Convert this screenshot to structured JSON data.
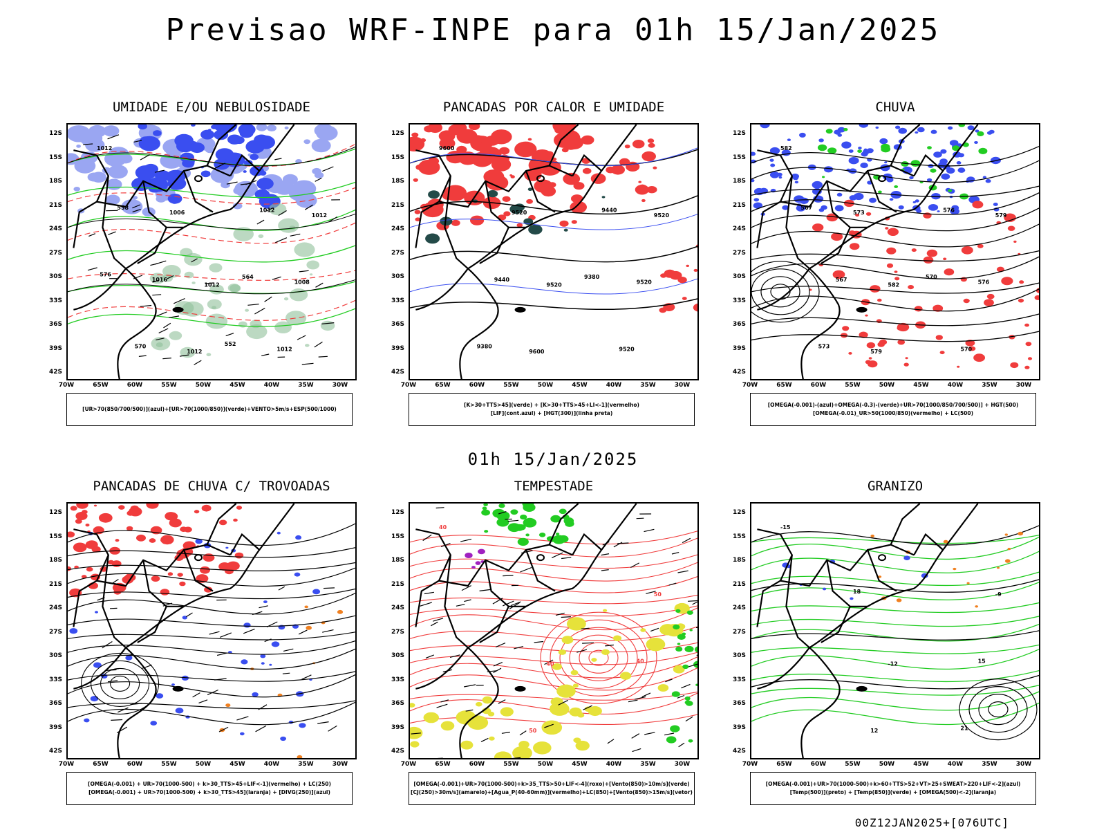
{
  "header": {
    "title": "Previsao WRF-INPE  para 01h 15/Jan/2025"
  },
  "middle_label": "01h 15/Jan/2025",
  "footer": {
    "run_stamp": "00Z12JAN2025+[076UTC]"
  },
  "axes": {
    "latitudes": [
      "12S",
      "15S",
      "18S",
      "21S",
      "24S",
      "27S",
      "30S",
      "33S",
      "36S",
      "39S",
      "42S"
    ],
    "longitudes": [
      "70W",
      "65W",
      "60W",
      "55W",
      "50W",
      "45W",
      "40W",
      "35W",
      "30W"
    ]
  },
  "colors": {
    "blue": "#3a4ef0",
    "lightblue": "#9aa6f2",
    "green": "#22cc22",
    "red": "#f03c3c",
    "yellow": "#e6e23a",
    "darkteal": "#234a48",
    "purple": "#a020c0",
    "orange": "#f08020"
  },
  "panels": [
    {
      "title": "UMIDADE E/OU NEBULOSIDADE",
      "legend": [
        "[UR>70(850/700/500)](azul)+[UR>70(1000/850)](verde)+VENTO>5m/s+ESP(500/1000)"
      ],
      "labels": [
        "1012",
        "1012",
        "1012",
        "1012",
        "1008",
        "1006",
        "1012",
        "1016",
        "1012",
        "570",
        "564",
        "558",
        "552",
        "576"
      ]
    },
    {
      "title": "PANCADAS POR CALOR E UMIDADE",
      "legend": [
        "[K>30+TTS>45](verde) + [K>30+TTS>45+LI<-1](vermelho)",
        "[LIF](cont.azul) + [HGT(300)](linha preta)"
      ],
      "labels": [
        "9600",
        "9520",
        "9520",
        "9600",
        "9520",
        "9520",
        "9520",
        "9440",
        "9440",
        "9380",
        "9380"
      ]
    },
    {
      "title": "CHUVA",
      "legend": [
        "[OMEGA(-0.001)-(azul)+OMEGA(-0.3)-(verde)+UR>70(1000/850/700/500)] + HGT(500)",
        "[OMEGA(-0.01)_UR>50(1000/850)(vermelho) + LC(500)"
      ],
      "labels": [
        "582",
        "582",
        "579",
        "579",
        "576",
        "573",
        "570",
        "567",
        "576",
        "573",
        "570",
        "567"
      ]
    },
    {
      "title": "PANCADAS DE CHUVA C/ TROVOADAS",
      "legend": [
        "[OMEGA(-0.001) + UR>70(1000-500) + k>30_TTS>45+LIF<-1](vermelho) + LC(250)",
        "[OMEGA(-0.001) + UR>70(1000-500) + k>30_TTS>45](laranja) + [DIVG(250)](azul)"
      ],
      "labels": []
    },
    {
      "title": "TEMPESTADE",
      "legend": [
        "[OMEGA(-0.001)+UR>70(1000-500)+k>35_TTS>50+LIF<-4](roxo)+[Vento(850)>10m/s](verde)",
        "[CJ(250)>30m/s](amarelo)+[Agua_P(40-60mm)](vermelho)+LC(850)+[Vento(850)>15m/s](vetor)"
      ],
      "labels": [
        "40",
        "40",
        "50",
        "50",
        "40"
      ]
    },
    {
      "title": "GRANIZO",
      "legend": [
        "[OMEGA(-0.001)+UR>70(1000-500)+k>60+TTS>52+VT>25+SWEAT>220+LIF<-2](azul)",
        "[Temp(500)](preto) + [Temp(850)](verde) + [OMEGA(500)<-2](laranja)"
      ],
      "labels": [
        "-15",
        "-12",
        "-9",
        "12",
        "15",
        "18",
        "21"
      ]
    }
  ]
}
